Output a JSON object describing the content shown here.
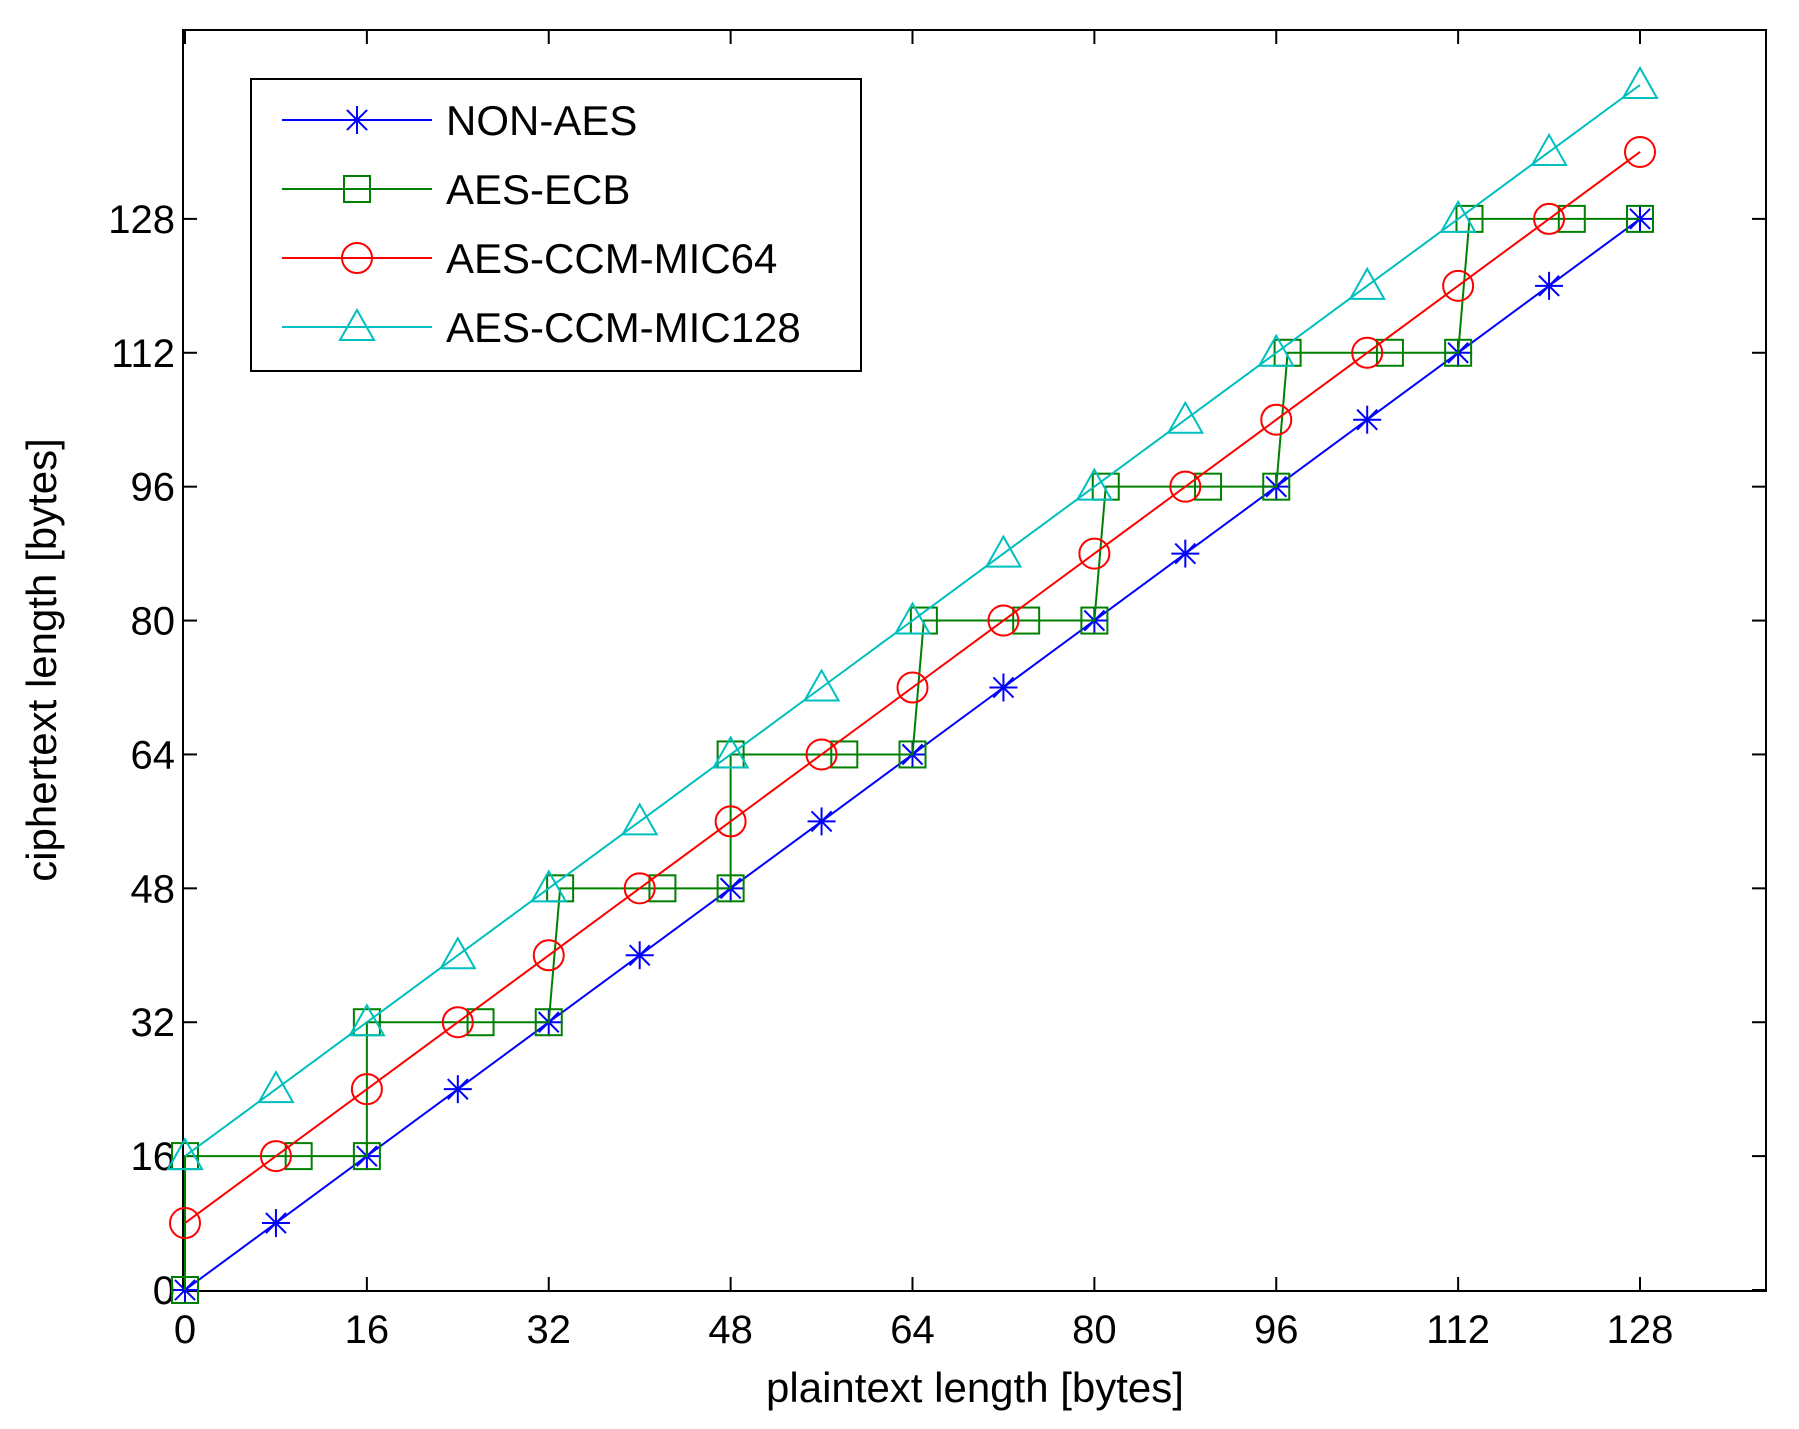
{
  "chart_data": {
    "type": "line",
    "title": "",
    "xlabel": "plaintext length [bytes]",
    "ylabel": "ciphertext length [bytes]",
    "xlim": [
      0,
      140
    ],
    "ylim": [
      0,
      144
    ],
    "xticks": [
      0,
      16,
      32,
      48,
      64,
      80,
      96,
      112,
      128
    ],
    "yticks": [
      0,
      16,
      32,
      48,
      64,
      80,
      96,
      112,
      128
    ],
    "legend_position": "top-left",
    "series": [
      {
        "name": "NON-AES",
        "color": "#0000ff",
        "marker": "star",
        "x": [
          0,
          8,
          16,
          24,
          32,
          40,
          48,
          56,
          64,
          72,
          80,
          88,
          96,
          104,
          112,
          120,
          128
        ],
        "y": [
          0,
          8,
          16,
          24,
          32,
          40,
          48,
          56,
          64,
          72,
          80,
          88,
          96,
          104,
          112,
          120,
          128
        ]
      },
      {
        "name": "AES-ECB",
        "color": "#008000",
        "marker": "square",
        "x": [
          0,
          0,
          10,
          16,
          16,
          26,
          32,
          33,
          42,
          48,
          48,
          58,
          64,
          65,
          74,
          80,
          81,
          90,
          96,
          97,
          106,
          112,
          113,
          122,
          128
        ],
        "y": [
          0,
          16,
          16,
          16,
          32,
          32,
          32,
          48,
          48,
          48,
          64,
          64,
          64,
          80,
          80,
          80,
          96,
          96,
          96,
          112,
          112,
          112,
          128,
          128,
          128
        ]
      },
      {
        "name": "AES-CCM-MIC64",
        "color": "#ff0000",
        "marker": "circle",
        "x": [
          0,
          8,
          16,
          24,
          32,
          40,
          48,
          56,
          64,
          72,
          80,
          88,
          96,
          104,
          112,
          120,
          128
        ],
        "y": [
          8,
          16,
          24,
          32,
          40,
          48,
          56,
          64,
          72,
          80,
          88,
          96,
          104,
          112,
          120,
          128,
          136
        ]
      },
      {
        "name": "AES-CCM-MIC128",
        "color": "#00bfbf",
        "marker": "triangle",
        "x": [
          0,
          8,
          16,
          24,
          32,
          40,
          48,
          56,
          64,
          72,
          80,
          88,
          96,
          104,
          112,
          120,
          128
        ],
        "y": [
          16,
          24,
          32,
          40,
          48,
          56,
          64,
          72,
          80,
          88,
          96,
          104,
          112,
          120,
          128,
          136,
          144
        ]
      }
    ]
  }
}
